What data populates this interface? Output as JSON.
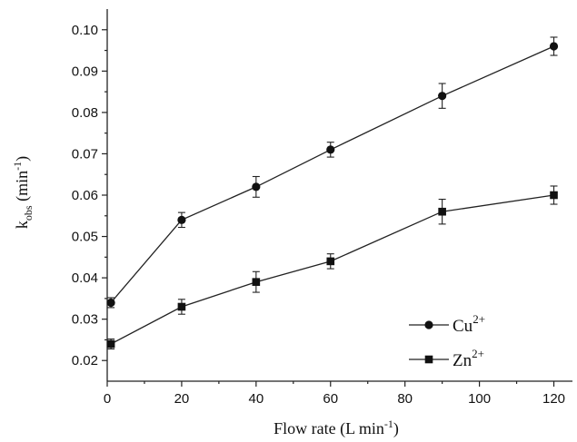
{
  "chart_data": {
    "type": "line",
    "xlabel": {
      "main": "Flow rate (L min",
      "sup": "-1",
      "tail": ")"
    },
    "ylabel": {
      "main": "k",
      "sub": "obs",
      "mid": " (min",
      "sup": "-1",
      "tail": ")"
    },
    "xlim": [
      0,
      125
    ],
    "ylim": [
      0.015,
      0.105
    ],
    "x_ticks": [
      0,
      20,
      40,
      60,
      80,
      100,
      120
    ],
    "x_tick_labels": [
      "0",
      "20",
      "40",
      "60",
      "80",
      "100",
      "120"
    ],
    "y_ticks": [
      0.02,
      0.03,
      0.04,
      0.05,
      0.06,
      0.07,
      0.08,
      0.09,
      0.1
    ],
    "y_tick_labels": [
      "0.02",
      "0.03",
      "0.04",
      "0.05",
      "0.06",
      "0.07",
      "0.08",
      "0.09",
      "0.10"
    ],
    "legend_position": "lower-right",
    "series": [
      {
        "name_main": "Cu",
        "name_sup": "2+",
        "marker": "circle",
        "x": [
          1,
          20,
          40,
          60,
          90,
          120
        ],
        "y": [
          0.034,
          0.054,
          0.062,
          0.071,
          0.084,
          0.096
        ],
        "err": [
          0.0012,
          0.0018,
          0.0025,
          0.0018,
          0.003,
          0.0022
        ]
      },
      {
        "name_main": "Zn",
        "name_sup": "2+",
        "marker": "square",
        "x": [
          1,
          20,
          40,
          60,
          90,
          120
        ],
        "y": [
          0.024,
          0.033,
          0.039,
          0.044,
          0.056,
          0.06
        ],
        "err": [
          0.0012,
          0.0018,
          0.0025,
          0.0018,
          0.003,
          0.0022
        ]
      }
    ]
  }
}
